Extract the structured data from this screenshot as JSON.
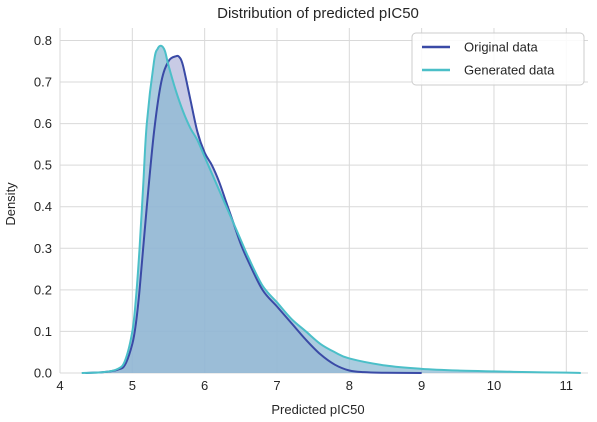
{
  "chart_data": {
    "type": "area",
    "title": "Distribution of predicted pIC50",
    "xlabel": "Predicted pIC50",
    "ylabel": "Density",
    "xlim": [
      4,
      11.3
    ],
    "ylim": [
      0,
      0.83
    ],
    "xticks": [
      "4",
      "5",
      "6",
      "7",
      "8",
      "9",
      "10",
      "11"
    ],
    "yticks": [
      "0.0",
      "0.1",
      "0.2",
      "0.3",
      "0.4",
      "0.5",
      "0.6",
      "0.7",
      "0.8"
    ],
    "grid": true,
    "legend_position": "top-right",
    "series": [
      {
        "name": "Original data",
        "color": "#3a4aa6",
        "fill": "#b6b9dc",
        "x": [
          4.35,
          4.6,
          4.8,
          4.9,
          5.0,
          5.05,
          5.1,
          5.2,
          5.3,
          5.4,
          5.5,
          5.6,
          5.65,
          5.7,
          5.8,
          5.9,
          6.0,
          6.1,
          6.2,
          6.3,
          6.4,
          6.5,
          6.6,
          6.8,
          7.0,
          7.2,
          7.4,
          7.6,
          7.8,
          8.0,
          8.2,
          8.5,
          9.0
        ],
        "y": [
          0.0,
          0.002,
          0.008,
          0.02,
          0.07,
          0.12,
          0.2,
          0.4,
          0.58,
          0.7,
          0.75,
          0.762,
          0.76,
          0.74,
          0.66,
          0.58,
          0.53,
          0.5,
          0.46,
          0.41,
          0.36,
          0.31,
          0.27,
          0.2,
          0.16,
          0.12,
          0.08,
          0.045,
          0.02,
          0.006,
          0.002,
          0.0005,
          0.0
        ]
      },
      {
        "name": "Generated data",
        "color": "#4bbfc8",
        "fill": "#87b6d1",
        "x": [
          4.3,
          4.6,
          4.8,
          4.9,
          5.0,
          5.05,
          5.1,
          5.15,
          5.2,
          5.3,
          5.35,
          5.4,
          5.45,
          5.5,
          5.6,
          5.7,
          5.8,
          5.9,
          6.0,
          6.1,
          6.2,
          6.3,
          6.4,
          6.5,
          6.6,
          6.8,
          7.0,
          7.2,
          7.4,
          7.6,
          7.8,
          8.0,
          8.5,
          9.0,
          9.5,
          10.0,
          10.5,
          11.0,
          11.2
        ],
        "y": [
          0.0,
          0.002,
          0.01,
          0.03,
          0.1,
          0.18,
          0.3,
          0.45,
          0.6,
          0.75,
          0.78,
          0.787,
          0.775,
          0.74,
          0.68,
          0.63,
          0.59,
          0.56,
          0.52,
          0.48,
          0.44,
          0.4,
          0.36,
          0.32,
          0.28,
          0.21,
          0.17,
          0.13,
          0.1,
          0.07,
          0.05,
          0.035,
          0.018,
          0.01,
          0.006,
          0.004,
          0.002,
          0.001,
          0.0
        ]
      }
    ]
  }
}
